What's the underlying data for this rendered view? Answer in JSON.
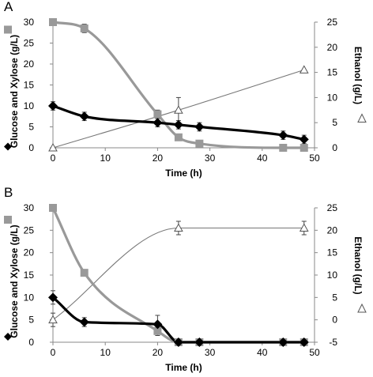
{
  "chart_data": [
    {
      "panel": "A",
      "type": "line",
      "xlabel": "Time (h)",
      "ylabel_left": "Glucose and Xylose (g/L)",
      "ylabel_right": "Ethanol (g/L)",
      "xlim": [
        0,
        50
      ],
      "x_ticks": [
        "0",
        "10",
        "20",
        "30",
        "40",
        "50"
      ],
      "ylim_left": [
        0,
        30
      ],
      "y_ticks_left": [
        "0",
        "5",
        "10",
        "15",
        "20",
        "25",
        "30"
      ],
      "ylim_right": [
        0,
        25
      ],
      "y_ticks_right": [
        "0",
        "5",
        "10",
        "15",
        "20",
        "25"
      ],
      "series": [
        {
          "key": "xylose",
          "axis": "left",
          "marker": "square",
          "color": "#999999",
          "x": [
            0,
            6,
            20,
            24,
            28,
            44,
            48
          ],
          "y": [
            30,
            28.5,
            8,
            2.5,
            1,
            0,
            0
          ],
          "err": [
            0.5,
            1,
            1,
            0.5,
            0.5,
            0,
            0
          ]
        },
        {
          "key": "glucose",
          "axis": "left",
          "marker": "diamond",
          "color": "#000000",
          "x": [
            0,
            6,
            20,
            24,
            28,
            44,
            48
          ],
          "y": [
            10,
            7.5,
            6,
            5.5,
            5,
            3,
            2
          ],
          "err": [
            1,
            1,
            1,
            1,
            1,
            1,
            1
          ]
        },
        {
          "key": "ethanol",
          "axis": "right",
          "marker": "triangle",
          "color": "#888888",
          "x": [
            0,
            24,
            48
          ],
          "y": [
            0,
            7.5,
            15.5
          ],
          "err": [
            0,
            2.5,
            0
          ]
        }
      ]
    },
    {
      "panel": "B",
      "type": "line",
      "xlabel": "Time (h)",
      "ylabel_left": "Glucose and Xylose (g/L)",
      "ylabel_right": "Ethanol (g/L)",
      "xlim": [
        0,
        50
      ],
      "x_ticks": [
        "0",
        "10",
        "20",
        "30",
        "40",
        "50"
      ],
      "ylim_left": [
        0,
        30
      ],
      "y_ticks_left": [
        "0",
        "5",
        "10",
        "15",
        "20",
        "25",
        "30"
      ],
      "ylim_right": [
        -5,
        25
      ],
      "y_ticks_right": [
        "-5",
        "0",
        "5",
        "10",
        "15",
        "20",
        "25"
      ],
      "series": [
        {
          "key": "xylose",
          "axis": "left",
          "marker": "square",
          "color": "#999999",
          "x": [
            0,
            6,
            20,
            24,
            28,
            44,
            48
          ],
          "y": [
            30,
            15.5,
            2.5,
            0,
            0,
            0,
            0
          ],
          "err": [
            0,
            0.5,
            1,
            0.5,
            0,
            0,
            0
          ]
        },
        {
          "key": "glucose",
          "axis": "left",
          "marker": "diamond",
          "color": "#000000",
          "x": [
            0,
            6,
            20,
            24,
            28,
            44,
            48
          ],
          "y": [
            10,
            4.5,
            4,
            0,
            0,
            0,
            0
          ],
          "err": [
            1.5,
            1,
            2,
            0,
            0,
            0,
            0
          ]
        },
        {
          "key": "ethanol",
          "axis": "right",
          "marker": "triangle",
          "color": "#888888",
          "x": [
            0,
            24,
            48
          ],
          "y": [
            0,
            20.5,
            20.5
          ],
          "err": [
            1.5,
            1.5,
            1.5
          ]
        }
      ]
    }
  ]
}
